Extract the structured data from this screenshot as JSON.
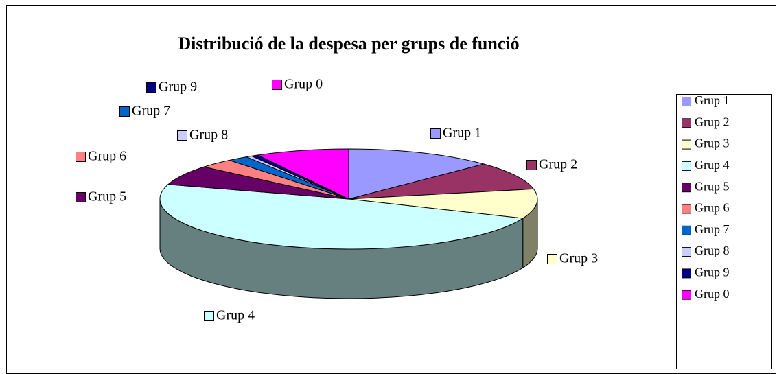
{
  "chart_data": {
    "type": "pie3d",
    "title": "Distribució de la despesa per grups de funció",
    "categories": [
      "Grup 1",
      "Grup 2",
      "Grup 3",
      "Grup 4",
      "Grup 5",
      "Grup 6",
      "Grup 7",
      "Grup 8",
      "Grup 9",
      "Grup 0"
    ],
    "values": [
      12.7,
      9.1,
      9.5,
      48.4,
      6.4,
      3.0,
      1.8,
      0.5,
      0.6,
      8.0
    ],
    "colors": [
      "#9999ff",
      "#993366",
      "#ffffcc",
      "#ccffff",
      "#660066",
      "#ff8080",
      "#0066cc",
      "#ccccff",
      "#000080",
      "#ff00ff"
    ],
    "legend": "right"
  }
}
